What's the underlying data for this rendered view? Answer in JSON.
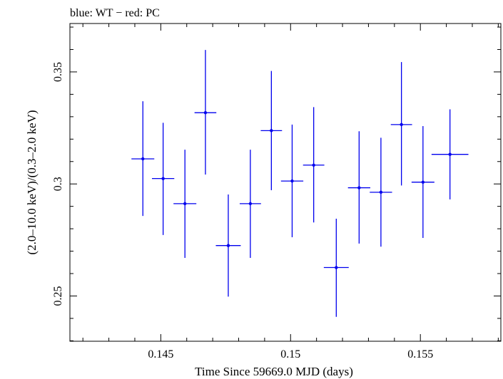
{
  "chart_data": {
    "type": "scatter",
    "title": "blue: WT − red: PC",
    "xlabel": "Time Since 59669.0 MJD (days)",
    "ylabel": "(2.0–10.0 keV)/(0.3–2.0 keV)",
    "xlim": [
      0.1415,
      0.1581
    ],
    "ylim": [
      0.2298,
      0.3716
    ],
    "x_ticks": [
      0.145,
      0.15,
      0.155
    ],
    "x_tick_labels": [
      "0.145",
      "0.15",
      "0.155"
    ],
    "y_ticks": [
      0.25,
      0.3,
      0.35
    ],
    "y_tick_labels": [
      "0.25",
      "0.3",
      "0.35"
    ],
    "grid": false,
    "series": [
      {
        "color": "#0000ee",
        "points": [
          {
            "x": 0.14431,
            "xerr": 0.00044,
            "y": 0.3112,
            "ylo": 0.2857,
            "yhi": 0.3369
          },
          {
            "x": 0.14509,
            "xerr": 0.00043,
            "y": 0.3024,
            "ylo": 0.2772,
            "yhi": 0.3273
          },
          {
            "x": 0.14593,
            "xerr": 0.00044,
            "y": 0.2912,
            "ylo": 0.267,
            "yhi": 0.3153
          },
          {
            "x": 0.14672,
            "xerr": 0.00042,
            "y": 0.3318,
            "ylo": 0.3042,
            "yhi": 0.3598
          },
          {
            "x": 0.1476,
            "xerr": 0.00048,
            "y": 0.2725,
            "ylo": 0.2497,
            "yhi": 0.2953
          },
          {
            "x": 0.14845,
            "xerr": 0.00041,
            "y": 0.2912,
            "ylo": 0.267,
            "yhi": 0.3153
          },
          {
            "x": 0.14926,
            "xerr": 0.00041,
            "y": 0.3238,
            "ylo": 0.2972,
            "yhi": 0.3504
          },
          {
            "x": 0.15006,
            "xerr": 0.00043,
            "y": 0.3013,
            "ylo": 0.2762,
            "yhi": 0.3265
          },
          {
            "x": 0.15089,
            "xerr": 0.00041,
            "y": 0.3084,
            "ylo": 0.2828,
            "yhi": 0.3343
          },
          {
            "x": 0.15176,
            "xerr": 0.00048,
            "y": 0.2627,
            "ylo": 0.2407,
            "yhi": 0.2845
          },
          {
            "x": 0.15264,
            "xerr": 0.00043,
            "y": 0.2983,
            "ylo": 0.2734,
            "yhi": 0.3235
          },
          {
            "x": 0.15348,
            "xerr": 0.00043,
            "y": 0.2963,
            "ylo": 0.272,
            "yhi": 0.3206
          },
          {
            "x": 0.15427,
            "xerr": 0.00041,
            "y": 0.3265,
            "ylo": 0.2993,
            "yhi": 0.3544
          },
          {
            "x": 0.1551,
            "xerr": 0.00044,
            "y": 0.3008,
            "ylo": 0.2759,
            "yhi": 0.3258
          },
          {
            "x": 0.15614,
            "xerr": 0.00071,
            "y": 0.3132,
            "ylo": 0.2931,
            "yhi": 0.3333
          }
        ]
      }
    ]
  }
}
